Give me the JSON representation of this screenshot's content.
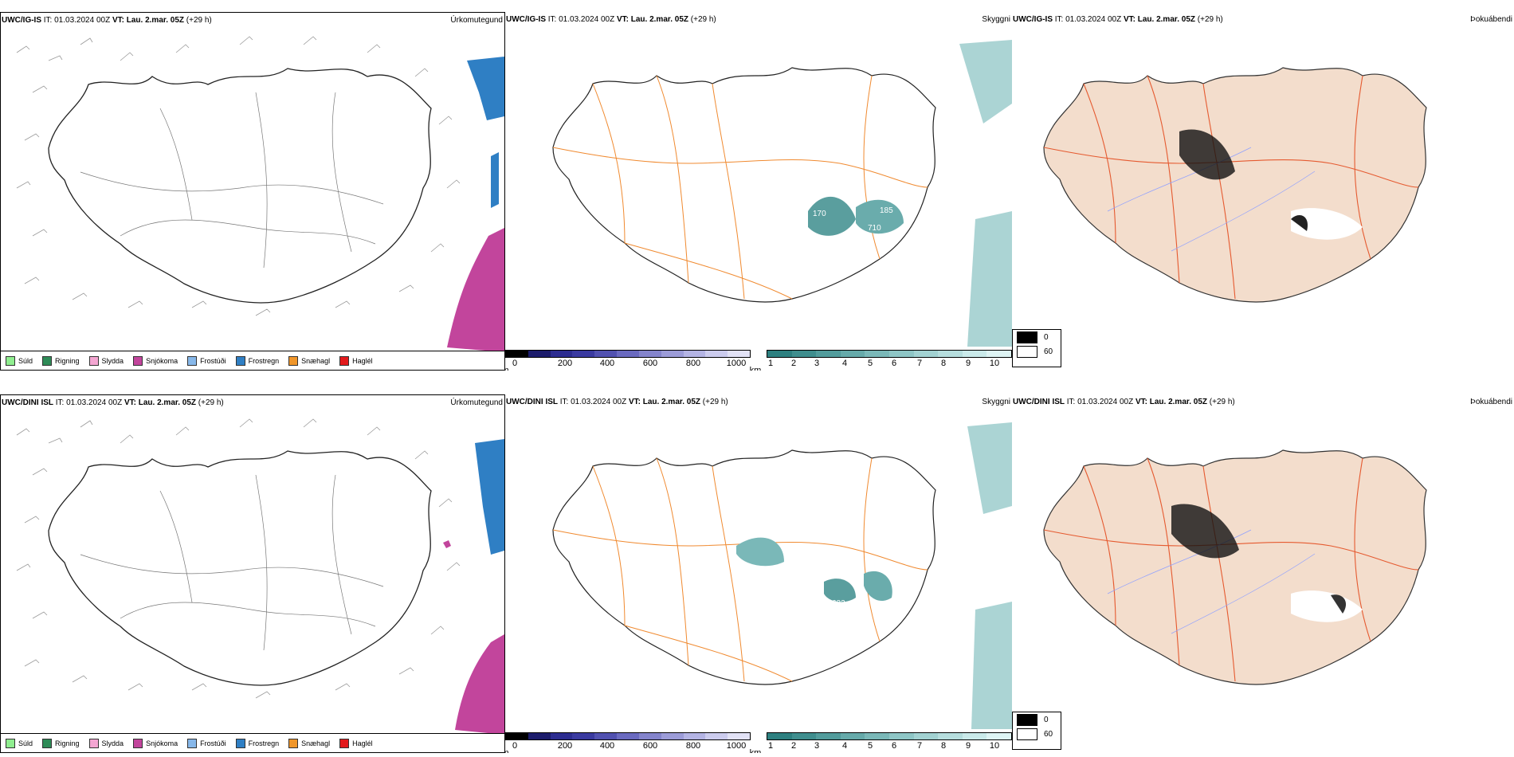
{
  "rows": [
    {
      "model": "UWC/IG-IS",
      "it_label": "IT:",
      "it_value": "01.03.2024 00Z",
      "vt_label": "VT:",
      "vt_value": "Lau. 2.mar. 05Z",
      "lead": "(+29 h)",
      "titles": [
        "Úrkomutegund",
        "Skyggni",
        "Þokuábendi"
      ],
      "labels": [
        "170",
        "185",
        "710"
      ]
    },
    {
      "model": "UWC/DINI ISL",
      "it_label": "IT:",
      "it_value": "01.03.2024 00Z",
      "vt_label": "VT:",
      "vt_value": "Lau. 2.mar. 05Z",
      "lead": "(+29 h)",
      "titles": [
        "Úrkomutegund",
        "Skyggni",
        "Þokuábendi"
      ],
      "labels": [
        "632"
      ]
    }
  ],
  "precip_legend": [
    {
      "label": "Súld",
      "color": "#90ee90"
    },
    {
      "label": "Rigning",
      "color": "#2e8b57"
    },
    {
      "label": "Slydda",
      "color": "#f4a6d2"
    },
    {
      "label": "Snjókoma",
      "color": "#c2459c"
    },
    {
      "label": "Frostúði",
      "color": "#87b8ea"
    },
    {
      "label": "Frostregn",
      "color": "#2f7fc4"
    },
    {
      "label": "Snæhagl",
      "color": "#f0962a"
    },
    {
      "label": "Haglél",
      "color": "#e31a1c"
    }
  ],
  "height_scale": {
    "unit": "m",
    "ticks": [
      "0",
      "200",
      "400",
      "600",
      "800",
      "1000"
    ],
    "colors": [
      "#000000",
      "#1c1c6c",
      "#2c2c90",
      "#3a3aa0",
      "#5151b0",
      "#6a6ac0",
      "#8484cc",
      "#9c9cd8",
      "#b4b4e4",
      "#ccccee",
      "#e2e2f6"
    ]
  },
  "visibility_scale": {
    "unit": "km",
    "ticks": [
      "1",
      "2",
      "3",
      "4",
      "5",
      "6",
      "7",
      "8",
      "9",
      "10"
    ],
    "colors": [
      "#2d8080",
      "#3f8e8e",
      "#529c9c",
      "#66aaaa",
      "#7ab8b8",
      "#8ec6c6",
      "#a2d2d2",
      "#b6dede",
      "#caeaea",
      "#def4f4"
    ]
  },
  "fog_legend": [
    {
      "label": "0",
      "color": "#000000"
    },
    {
      "label": "60",
      "color": "#ffffff"
    }
  ]
}
